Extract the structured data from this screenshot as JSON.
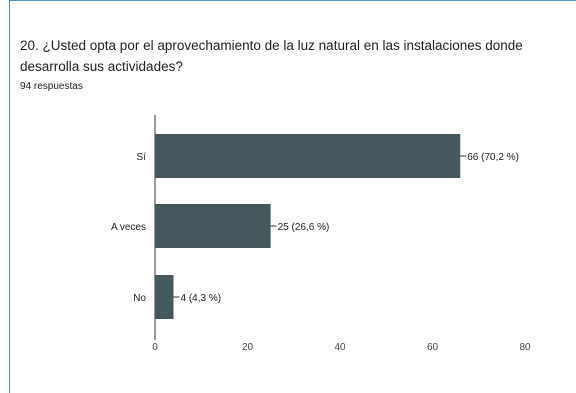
{
  "question": {
    "title": "20. ¿Usted opta por el aprovechamiento de la luz natural en las instalaciones donde desarrolla sus actividades?",
    "responses": "94 respuestas"
  },
  "chart_data": {
    "type": "bar",
    "orientation": "horizontal",
    "categories": [
      "Sí",
      "A veces",
      "No"
    ],
    "values": [
      66,
      25,
      4
    ],
    "data_labels": [
      "66 (70,2 %)",
      "25 (26,6 %)",
      "4 (4,3 %)"
    ],
    "xlim": [
      0,
      80
    ],
    "xticks": [
      "0",
      "20",
      "40",
      "60",
      "80"
    ],
    "grid": false,
    "colors": {
      "bar": "#44585d",
      "axis": "#333333",
      "label": "#202124"
    }
  }
}
